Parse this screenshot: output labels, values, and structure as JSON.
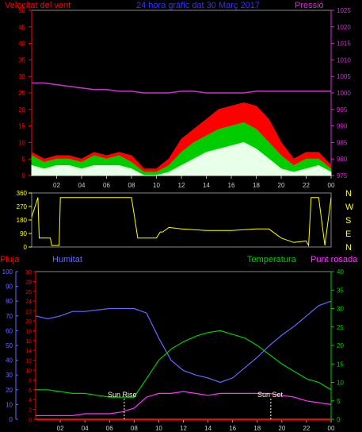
{
  "chart_data": [
    {
      "type": "line",
      "title": "24 hora gràfic dat  30 Març 2017",
      "left_axis_label": "Velocitat del vent",
      "right_axis_label": "Pressió",
      "left_ylim": [
        0,
        50
      ],
      "left_ticks": [
        "0",
        "5",
        "10",
        "15",
        "20",
        "25",
        "30",
        "35",
        "40",
        "45",
        "50"
      ],
      "right_ylim": [
        975,
        1025
      ],
      "right_ticks": [
        "975",
        "980",
        "985",
        "990",
        "995",
        "1000",
        "1005",
        "1010",
        "1015",
        "1020",
        "1025"
      ],
      "x_ticks": [
        "02",
        "04",
        "06",
        "08",
        "10",
        "12",
        "14",
        "16",
        "18",
        "20",
        "22",
        "00"
      ],
      "colors": {
        "gust": "#ff0000",
        "wind": "#00cc00",
        "avg": "#e8ffe8",
        "pressure": "#cc33cc",
        "axis_left": "#ff0000",
        "axis_right": "#cc33cc",
        "title": "#3333ff"
      },
      "series": [
        {
          "name": "gust",
          "x": [
            0,
            1,
            2,
            3,
            4,
            5,
            6,
            7,
            8,
            9,
            10,
            11,
            12,
            13,
            14,
            15,
            16,
            17,
            18,
            19,
            20,
            21,
            22,
            23,
            24
          ],
          "values": [
            7,
            5,
            6,
            6,
            5,
            7,
            6,
            7,
            6,
            2,
            2,
            5,
            11,
            14,
            17,
            20,
            21,
            22,
            21,
            17,
            10,
            5,
            7,
            7,
            3
          ]
        },
        {
          "name": "wind",
          "x": [
            0,
            1,
            2,
            3,
            4,
            5,
            6,
            7,
            8,
            9,
            10,
            11,
            12,
            13,
            14,
            15,
            16,
            17,
            18,
            19,
            20,
            21,
            22,
            23,
            24
          ],
          "values": [
            6,
            4,
            5,
            5,
            4,
            6,
            5,
            6,
            4,
            1,
            1,
            3,
            7,
            10,
            12,
            14,
            15,
            16,
            14,
            10,
            6,
            3,
            5,
            5,
            2
          ]
        },
        {
          "name": "avg",
          "x": [
            0,
            1,
            2,
            3,
            4,
            5,
            6,
            7,
            8,
            9,
            10,
            11,
            12,
            13,
            14,
            15,
            16,
            17,
            18,
            19,
            20,
            21,
            22,
            23,
            24
          ],
          "values": [
            3,
            2,
            3,
            3,
            2,
            3,
            3,
            3,
            2,
            0,
            0,
            1,
            3,
            5,
            7,
            8,
            9,
            10,
            8,
            5,
            2,
            1,
            2,
            3,
            1
          ]
        },
        {
          "name": "pressure",
          "x": [
            0,
            1,
            2,
            3,
            4,
            5,
            6,
            7,
            8,
            9,
            10,
            11,
            12,
            13,
            14,
            15,
            16,
            17,
            18,
            19,
            20,
            21,
            22,
            23,
            24
          ],
          "values": [
            1003,
            1003,
            1002.5,
            1002,
            1001.5,
            1001,
            1001,
            1000.5,
            1000.5,
            1000,
            1000,
            1000,
            1000.5,
            1000.5,
            1000,
            1000,
            1000,
            1000,
            1000.5,
            1000.5,
            1000.5,
            1000.5,
            1000.5,
            1000.5,
            1000.5
          ]
        }
      ]
    },
    {
      "type": "line",
      "ylim": [
        0,
        360
      ],
      "left_ticks": [
        "0",
        "90",
        "180",
        "270",
        "360"
      ],
      "right_labels": [
        "N",
        "W",
        "S",
        "E",
        "N"
      ],
      "colors": {
        "direction": "#ffff00",
        "axis": "#ffff00"
      },
      "series": [
        {
          "name": "direction",
          "x": [
            0,
            0.5,
            0.6,
            1.5,
            1.6,
            2.2,
            2.3,
            3,
            3.3,
            4,
            4.5,
            5,
            6,
            7,
            7.5,
            8,
            8.5,
            9,
            10,
            10.3,
            10.5,
            11,
            12,
            13,
            14,
            15,
            16,
            17,
            18,
            19,
            20,
            21,
            22,
            22.2,
            22.4,
            23,
            23.5,
            24
          ],
          "values": [
            200,
            330,
            60,
            60,
            10,
            10,
            330,
            330,
            330,
            330,
            330,
            330,
            330,
            330,
            330,
            330,
            60,
            60,
            60,
            100,
            100,
            130,
            120,
            115,
            110,
            110,
            110,
            115,
            120,
            120,
            60,
            30,
            40,
            10,
            330,
            330,
            10,
            330
          ]
        }
      ]
    },
    {
      "type": "line",
      "labels": {
        "pluja": "Pluja",
        "humitat": "Humitat",
        "temperatura": "Temperatura",
        "punt_rosada": "Punt rosada",
        "sunrise": "Sun Rise",
        "sunset": "Sun Set"
      },
      "left_ylim_humidity": [
        0,
        100
      ],
      "left_ticks_humidity": [
        "0",
        "10",
        "20",
        "30",
        "40",
        "50",
        "60",
        "70",
        "80",
        "90",
        "100"
      ],
      "left_ylim_rain": [
        0,
        30
      ],
      "left_ticks_rain": [
        "0",
        "2",
        "4",
        "6",
        "8",
        "10",
        "12",
        "14",
        "16",
        "18",
        "20",
        "22",
        "24",
        "26",
        "28",
        "30"
      ],
      "right_ylim": [
        0,
        40
      ],
      "right_ticks": [
        "0",
        "5",
        "10",
        "15",
        "20",
        "25",
        "30",
        "35",
        "40"
      ],
      "x_ticks": [
        "02",
        "04",
        "06",
        "08",
        "10",
        "12",
        "14",
        "16",
        "18",
        "20",
        "22",
        "00"
      ],
      "sunrise_hour": 7.2,
      "sunset_hour": 19.1,
      "colors": {
        "rain": "#ff0000",
        "humidity": "#6666ff",
        "temperature": "#00cc00",
        "dewpoint": "#ff33ff",
        "sunmarker": "#ffffcc",
        "axis_rain": "#ff0000",
        "axis_humidity": "#6666ff",
        "axis_right": "#00cc00"
      },
      "series": [
        {
          "name": "humidity",
          "x": [
            0,
            1,
            2,
            3,
            4,
            5,
            6,
            7,
            8,
            9,
            10,
            11,
            12,
            13,
            14,
            15,
            16,
            17,
            18,
            19,
            20,
            21,
            22,
            23,
            24
          ],
          "values": [
            70,
            68,
            70,
            73,
            73,
            74,
            75,
            75,
            75,
            72,
            55,
            40,
            33,
            30,
            28,
            25,
            28,
            35,
            42,
            50,
            57,
            63,
            70,
            77,
            80
          ]
        },
        {
          "name": "temperature",
          "x": [
            0,
            1,
            2,
            3,
            4,
            5,
            6,
            7,
            8,
            9,
            10,
            11,
            12,
            13,
            14,
            15,
            16,
            17,
            18,
            19,
            20,
            21,
            22,
            23,
            24
          ],
          "values": [
            8,
            8,
            7.5,
            7,
            7,
            6.5,
            6,
            6,
            6,
            11,
            16,
            19,
            21,
            22.5,
            23.5,
            24,
            23,
            22,
            20,
            17.5,
            15,
            13,
            11,
            10,
            8
          ]
        },
        {
          "name": "dewpoint",
          "x": [
            0,
            1,
            2,
            3,
            4,
            5,
            6,
            7,
            8,
            9,
            10,
            11,
            12,
            13,
            14,
            15,
            16,
            17,
            18,
            19,
            20,
            21,
            22,
            23,
            24
          ],
          "values": [
            1,
            1,
            1,
            1,
            1.5,
            1.5,
            1.5,
            2,
            3,
            6,
            7,
            7,
            7.5,
            7,
            6.5,
            7,
            7,
            7,
            7,
            7,
            6.5,
            6,
            5,
            4.5,
            4
          ]
        },
        {
          "name": "rain",
          "x": [
            0,
            24
          ],
          "values": [
            0,
            0
          ]
        }
      ]
    }
  ]
}
